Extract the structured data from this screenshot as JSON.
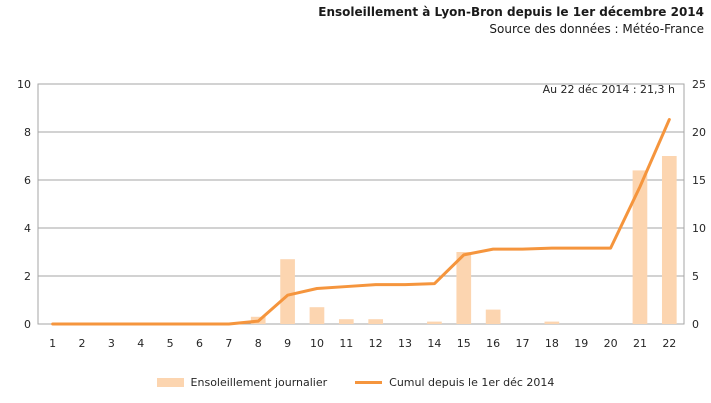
{
  "colors": {
    "bar_fill": "#FCD5B0",
    "line": "#F5953D",
    "grid": "#A6A6A6",
    "axis_text": "#262626",
    "title_text": "#1A1A1A"
  },
  "chart_data": {
    "type": "bar+line",
    "title": "Ensoleillement à Lyon-Bron depuis le 1er décembre 2014",
    "subtitle": "Source des données : Météo-France",
    "annotation": "Au 22 déc 2014 : 21,3 h",
    "categories": [
      1,
      2,
      3,
      4,
      5,
      6,
      7,
      8,
      9,
      10,
      11,
      12,
      13,
      14,
      15,
      16,
      17,
      18,
      19,
      20,
      21,
      22
    ],
    "series": [
      {
        "name": "Ensoleillement journalier",
        "type": "bar",
        "axis": "left",
        "values": [
          0,
          0,
          0,
          0,
          0,
          0,
          0,
          0.3,
          2.7,
          0.7,
          0.2,
          0.2,
          0,
          0.1,
          3.0,
          0.6,
          0,
          0.1,
          0,
          0,
          6.4,
          7.0
        ]
      },
      {
        "name": "Cumul depuis le 1er déc 2014",
        "type": "line",
        "axis": "right",
        "values": [
          0,
          0,
          0,
          0,
          0,
          0,
          0,
          0.3,
          3.0,
          3.7,
          3.9,
          4.1,
          4.1,
          4.2,
          7.2,
          7.8,
          7.8,
          7.9,
          7.9,
          7.9,
          14.3,
          21.3
        ]
      }
    ],
    "left_axis": {
      "min": 0,
      "max": 10,
      "ticks": [
        0,
        2,
        4,
        6,
        8,
        10
      ]
    },
    "right_axis": {
      "min": 0,
      "max": 25,
      "ticks": [
        0,
        5,
        10,
        15,
        20,
        25
      ]
    },
    "xlabel": "",
    "ylabel": "",
    "grid": true,
    "legend_position": "bottom"
  }
}
